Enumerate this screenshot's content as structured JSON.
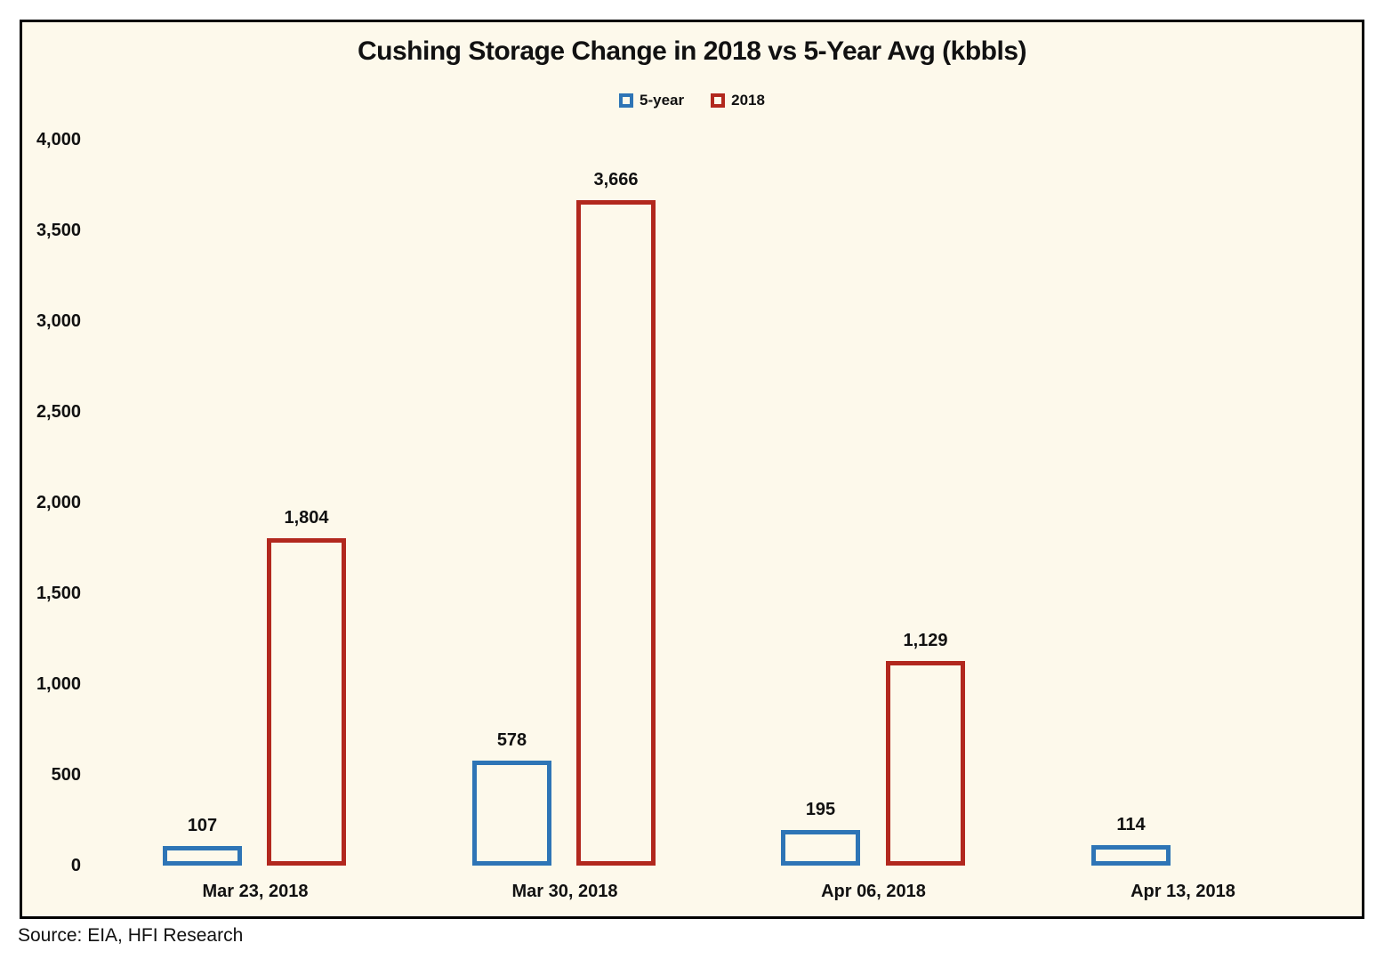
{
  "page": {
    "source": "Source: EIA, HFI Research"
  },
  "chart_data": {
    "type": "bar",
    "title": "Cushing Storage Change in 2018 vs 5-Year Avg (kbbls)",
    "categories": [
      "Mar 23, 2018",
      "Mar 30, 2018",
      "Apr 06, 2018",
      "Apr 13, 2018"
    ],
    "series": [
      {
        "name": "5-year",
        "color": "#2E75B6",
        "values": [
          107,
          578,
          195,
          114
        ]
      },
      {
        "name": "2018",
        "color": "#B2281E",
        "values": [
          1804,
          3666,
          1129,
          null
        ]
      }
    ],
    "ylim": [
      0,
      4000
    ],
    "y_tick_step": 500,
    "y_tick_labels": [
      "0",
      "500",
      "1,000",
      "1,500",
      "2,000",
      "2,500",
      "3,000",
      "3,500",
      "4,000"
    ],
    "data_labels": [
      "107",
      "578",
      "195",
      "114",
      "1,804",
      "3,666",
      "1,129"
    ],
    "grid": false,
    "legend_position": "top",
    "bar_style": "hollow-outline",
    "background": "#FDF9EB",
    "frame_color": "#000000"
  }
}
